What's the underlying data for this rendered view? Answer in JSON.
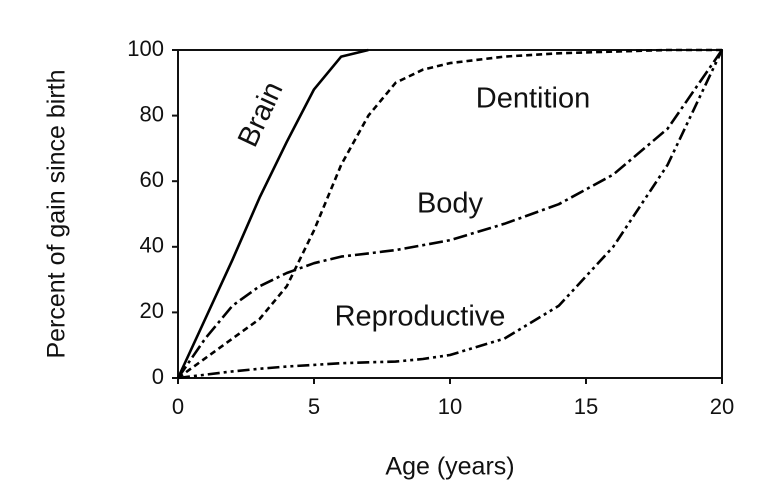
{
  "chart_data": {
    "type": "line",
    "x_label": "Age (years)",
    "y_label": "Percent of gain since birth",
    "x": [
      0,
      1,
      2,
      3,
      4,
      5,
      6,
      7,
      8,
      9,
      10,
      12,
      14,
      16,
      18,
      20
    ],
    "series": [
      {
        "name": "Brain",
        "color": "#000000",
        "style": "solid",
        "values": [
          0,
          18,
          36,
          55,
          72,
          88,
          98,
          100,
          null,
          null,
          null,
          null,
          null,
          null,
          null,
          null
        ]
      },
      {
        "name": "Dentition",
        "color": "#000000",
        "style": "dashed",
        "values": [
          0,
          6,
          12,
          18,
          28,
          45,
          65,
          80,
          90,
          94,
          96,
          98,
          99,
          99.5,
          100,
          100
        ]
      },
      {
        "name": "Body",
        "color": "#000000",
        "style": "dash-dot",
        "values": [
          0,
          12,
          22,
          28,
          32,
          35,
          37,
          38,
          39,
          40.5,
          42,
          47,
          53,
          62,
          76,
          100
        ]
      },
      {
        "name": "Reproductive",
        "color": "#000000",
        "style": "dash-dot-dot",
        "values": [
          0,
          1,
          2,
          2.8,
          3.5,
          4,
          4.5,
          4.8,
          5,
          5.8,
          7,
          12,
          22,
          40,
          65,
          100
        ]
      }
    ],
    "xlim": [
      0,
      20
    ],
    "xticks": [
      0,
      5,
      10,
      15,
      20
    ],
    "ylim": [
      0,
      100
    ],
    "yticks": [
      0,
      20,
      40,
      60,
      80,
      100
    ],
    "grid": false
  }
}
